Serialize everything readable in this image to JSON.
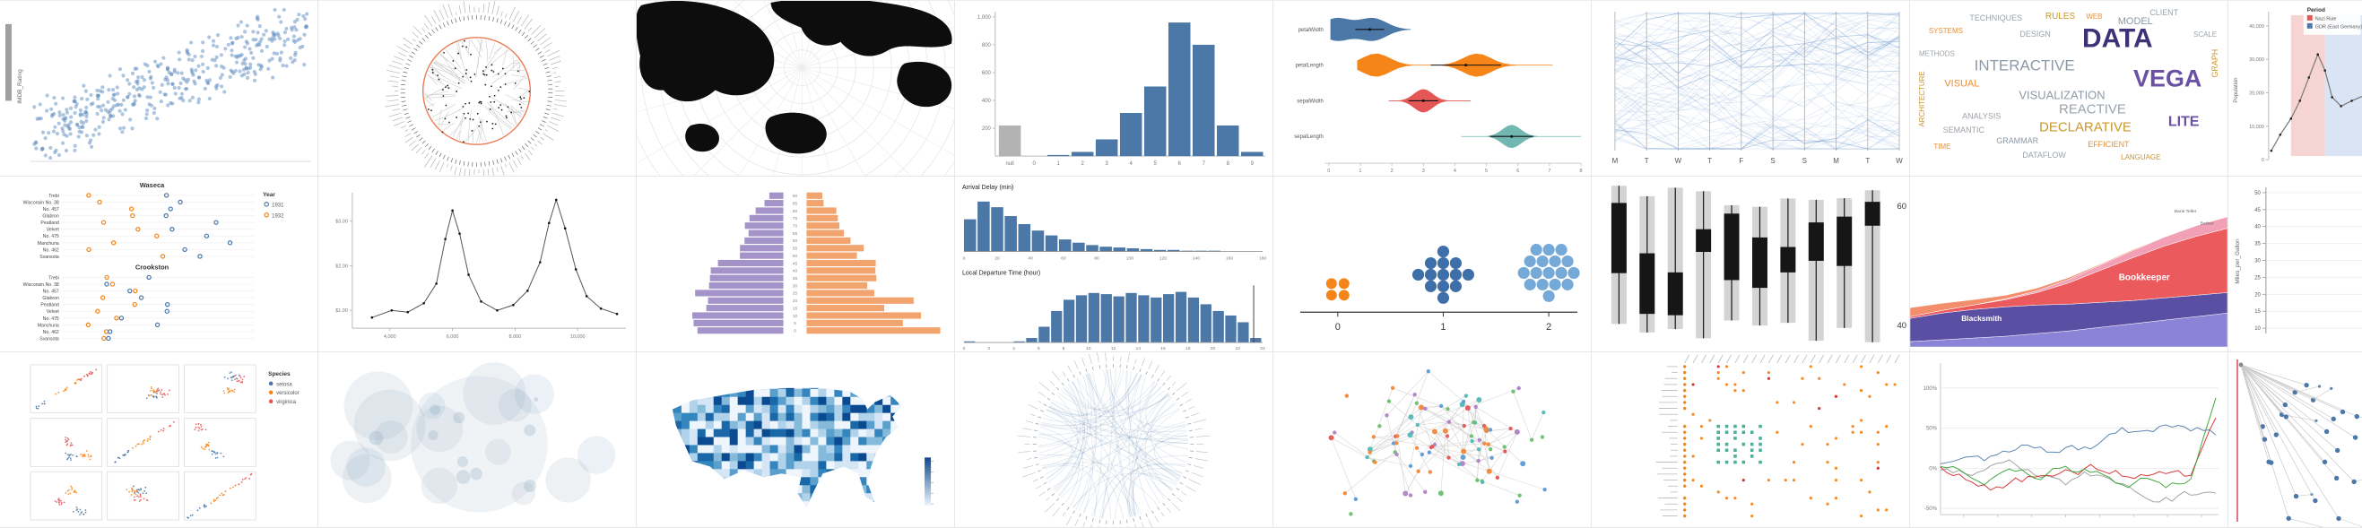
{
  "gallery": {
    "rows": 3,
    "columns": 8
  },
  "chart_data": [
    {
      "id": "scatterplot",
      "type": "scatter",
      "ylabel": "IMDB_Rating",
      "point_color": "#5b8cbf",
      "n_points": 420,
      "trend": "positive"
    },
    {
      "id": "radial-tree",
      "type": "radial_tree",
      "arc_color": "#e8744c",
      "link_color": "#cccccc",
      "node_color": "#222222"
    },
    {
      "id": "world-map-polar",
      "type": "world_map",
      "land_color": "#0d0d0d",
      "graticule_color": "#e3e3e3"
    },
    {
      "id": "histogram-null",
      "type": "histogram",
      "categories": [
        "null",
        "0",
        "1",
        "2",
        "3",
        "4",
        "5",
        "6",
        "7",
        "8",
        "9"
      ],
      "values": [
        220,
        2,
        8,
        30,
        120,
        310,
        500,
        960,
        800,
        220,
        30
      ],
      "y_ticks": [
        "200",
        "400",
        "600",
        "800",
        "1,000"
      ],
      "ylim": [
        0,
        1000
      ],
      "bar_color": "#4c78a8",
      "null_bar_color": "#b3b3b3"
    },
    {
      "id": "violin-plot",
      "type": "violin",
      "categories": [
        "petalWidth",
        "petalLength",
        "sepalWidth",
        "sepalLength"
      ],
      "colors": [
        "#4c78a8",
        "#f58518",
        "#e45756",
        "#72b7b2"
      ],
      "x_ticks": [
        "0",
        "1",
        "2",
        "3",
        "4",
        "5",
        "6",
        "7",
        "8"
      ],
      "xlim": [
        0,
        8
      ],
      "distributions": [
        {
          "range": [
            0.05,
            2.6
          ],
          "peaks": [
            0.25,
            1.4
          ],
          "median": 1.3
        },
        {
          "range": [
            0.9,
            7.1
          ],
          "peaks": [
            1.5,
            4.7
          ],
          "median": 4.35
        },
        {
          "range": [
            1.9,
            4.5
          ],
          "peaks": [
            3.0
          ],
          "median": 3.0
        },
        {
          "range": [
            4.2,
            8.0
          ],
          "peaks": [
            5.8
          ],
          "median": 5.8
        }
      ]
    },
    {
      "id": "parallel-coordinates",
      "type": "parallel",
      "axis_labels": [
        "M",
        "T",
        "W",
        "T",
        "F",
        "S",
        "S",
        "M",
        "T",
        "W"
      ],
      "line_color": "#6f9bd1",
      "n_lines": 75
    },
    {
      "id": "word-cloud",
      "type": "wordcloud",
      "words": [
        {
          "t": "DATA",
          "x": 232,
          "y": 52,
          "s": 30,
          "c": "#3b3277",
          "b": 1
        },
        {
          "t": "VEGA",
          "x": 288,
          "y": 96,
          "s": 27,
          "c": "#6a51a3",
          "b": 1
        },
        {
          "t": "INTERACTIVE",
          "x": 128,
          "y": 78,
          "s": 17,
          "c": "#8d99a6"
        },
        {
          "t": "VISUALIZATION",
          "x": 170,
          "y": 110,
          "s": 13,
          "c": "#8d99a6"
        },
        {
          "t": "REACTIVE",
          "x": 204,
          "y": 126,
          "s": 15,
          "c": "#9aa3ab"
        },
        {
          "t": "DECLARATIVE",
          "x": 196,
          "y": 146,
          "s": 15,
          "c": "#c9972b"
        },
        {
          "t": "LITE",
          "x": 306,
          "y": 140,
          "s": 16,
          "c": "#6a51a3",
          "b": 1
        },
        {
          "t": "VISUAL",
          "x": 58,
          "y": 96,
          "s": 11,
          "c": "#e8903a"
        },
        {
          "t": "MODEL",
          "x": 252,
          "y": 26,
          "s": 11,
          "c": "#8d99a6"
        },
        {
          "t": "SEMANTIC",
          "x": 60,
          "y": 148,
          "s": 9,
          "c": "#9aa3ab"
        },
        {
          "t": "ARCHITECTURE",
          "x": 16,
          "y": 110,
          "s": 8,
          "c": "#c9972b",
          "r": -90
        },
        {
          "t": "TECHNIQUES",
          "x": 96,
          "y": 22,
          "s": 9,
          "c": "#9aa3ab"
        },
        {
          "t": "RULES",
          "x": 168,
          "y": 20,
          "s": 10,
          "c": "#c9972b"
        },
        {
          "t": "CLIENT",
          "x": 284,
          "y": 16,
          "s": 9,
          "c": "#9aa3ab"
        },
        {
          "t": "GRAMMAR",
          "x": 120,
          "y": 160,
          "s": 9,
          "c": "#8d99a6"
        },
        {
          "t": "EFFICIENT",
          "x": 222,
          "y": 164,
          "s": 9,
          "c": "#e8903a"
        },
        {
          "t": "SYSTEMS",
          "x": 40,
          "y": 36,
          "s": 8,
          "c": "#e8903a"
        },
        {
          "t": "DESIGN",
          "x": 140,
          "y": 40,
          "s": 9,
          "c": "#9aa3ab"
        },
        {
          "t": "GRAPH",
          "x": 344,
          "y": 70,
          "s": 9,
          "c": "#c9972b",
          "r": -90
        },
        {
          "t": "WEB",
          "x": 206,
          "y": 20,
          "s": 8,
          "c": "#e8903a"
        },
        {
          "t": "ANALYSIS",
          "x": 80,
          "y": 132,
          "s": 9,
          "c": "#9aa3ab"
        },
        {
          "t": "DATAFLOW",
          "x": 150,
          "y": 176,
          "s": 9,
          "c": "#9aa3ab"
        },
        {
          "t": "LANGUAGE",
          "x": 258,
          "y": 178,
          "s": 8,
          "c": "#c9972b"
        },
        {
          "t": "SCALE",
          "x": 330,
          "y": 40,
          "s": 8,
          "c": "#9aa3ab"
        },
        {
          "t": "TIME",
          "x": 36,
          "y": 166,
          "s": 8,
          "c": "#e8903a"
        },
        {
          "t": "METHODS",
          "x": 30,
          "y": 62,
          "s": 8,
          "c": "#9aa3ab"
        }
      ]
    },
    {
      "id": "falkensee-population",
      "type": "annotated_line",
      "ylabel": "Population",
      "y_ticks": [
        "0",
        "10,000",
        "20,000",
        "30,000",
        "40,000"
      ],
      "legend": {
        "title": "Period",
        "items": [
          {
            "label": "Nazi Rule",
            "color": "#e45756"
          },
          {
            "label": "GDR (East Germany)",
            "color": "#4c78a8"
          }
        ]
      },
      "line_color": "#777777"
    },
    {
      "id": "barley-trellis",
      "type": "barley",
      "panels": [
        "Waseca",
        "Crookston"
      ],
      "varieties": [
        "Trebi",
        "Wisconsin No. 38",
        "No. 457",
        "Glabron",
        "Peatland",
        "Velvet",
        "No. 475",
        "Manchuria",
        "No. 462",
        "Svansota"
      ],
      "legend": {
        "title": "Year",
        "items": [
          {
            "label": "1931",
            "color": "#4c78a8"
          },
          {
            "label": "1932",
            "color": "#f58518"
          }
        ]
      }
    },
    {
      "id": "connected-scatter",
      "type": "connected_scatter",
      "y_ticks": [
        "$1.00",
        "$2.00",
        "$3.00"
      ],
      "x_ticks": [
        "4,000",
        "6,000",
        "8,000",
        "10,000"
      ],
      "line_color": "#555555"
    },
    {
      "id": "population-pyramid",
      "type": "pyramid",
      "age_ticks": [
        "0",
        "5",
        "10",
        "15",
        "20",
        "25",
        "30",
        "35",
        "40",
        "45",
        "50",
        "55",
        "60",
        "65",
        "70",
        "75",
        "80",
        "85",
        "90"
      ],
      "left_color": "#a393c9",
      "right_color": "#f2a46f"
    },
    {
      "id": "crossfilter-flights",
      "type": "crossfilter",
      "panels": [
        {
          "title": "Arrival Delay (min)",
          "x_ticks": [
            "0",
            "20",
            "40",
            "60",
            "80",
            "100",
            "120",
            "140",
            "160",
            "180"
          ],
          "values": [
            40,
            62,
            55,
            44,
            34,
            26,
            20,
            15,
            11,
            8,
            6,
            5,
            4,
            3,
            2,
            2,
            1,
            1,
            1,
            0,
            0,
            0
          ]
        },
        {
          "title": "Local Departure Time (hour)",
          "x_ticks": [
            "0",
            "2",
            "4",
            "6",
            "8",
            "10",
            "12",
            "14",
            "16",
            "18",
            "20",
            "22",
            "24"
          ],
          "values": [
            1,
            0,
            0,
            0,
            1,
            4,
            14,
            28,
            38,
            42,
            44,
            43,
            41,
            44,
            42,
            40,
            43,
            45,
            40,
            34,
            28,
            24,
            18,
            4
          ]
        }
      ],
      "bar_color": "#4c78a8"
    },
    {
      "id": "dot-plot-groups",
      "type": "dot_groups",
      "x_ticks": [
        "0",
        "1",
        "2"
      ],
      "groups": [
        {
          "count": 4,
          "color": "#f58518"
        },
        {
          "count": 13,
          "color": "#3f6fa8"
        },
        {
          "count": 17,
          "color": "#74a9d8"
        }
      ]
    },
    {
      "id": "ranged-bars",
      "type": "candles",
      "y_ticks": [
        "60",
        "40"
      ],
      "bg_color": "#d4d4d4",
      "fg_color": "#161616",
      "n": 10
    },
    {
      "id": "job-voyager",
      "type": "stream",
      "labels": [
        {
          "text": "Blacksmith",
          "x": 80,
          "y": 162,
          "size": 8.5,
          "color": "#ffffff"
        },
        {
          "text": "Bookkeeper",
          "x": 262,
          "y": 116,
          "size": 10,
          "color": "#ffffff"
        },
        {
          "text": "Bank Teller",
          "x": 308,
          "y": 40,
          "size": 5,
          "color": "#666666"
        },
        {
          "text": "Barber",
          "x": 332,
          "y": 54,
          "size": 5,
          "color": "#666666"
        }
      ],
      "colors": [
        "#8b84d6",
        "#5a4fa2",
        "#eb5b5e",
        "#f2a0b5",
        "#f28e6b"
      ],
      "layers": [
        [
          6,
          8,
          10,
          12,
          15,
          18,
          22,
          26,
          30,
          34,
          38
        ],
        [
          26,
          30,
          32,
          33,
          32,
          30,
          28,
          26,
          25,
          24,
          23
        ],
        [
          2,
          3,
          5,
          8,
          14,
          24,
          36,
          48,
          58,
          66,
          72
        ],
        [
          0,
          0,
          0,
          1,
          2,
          4,
          6,
          8,
          10,
          12,
          13
        ],
        [
          10,
          8,
          6,
          4,
          3,
          2,
          1,
          1,
          0,
          0,
          0
        ]
      ]
    },
    {
      "id": "mpg-axis",
      "type": "axis_only",
      "ylabel": "Miles_per_Gallon",
      "y_ticks": [
        "50",
        "45",
        "40",
        "35",
        "30",
        "25",
        "20",
        "15",
        "10"
      ]
    },
    {
      "id": "splom-iris",
      "type": "splom",
      "legend": {
        "title": "Species",
        "items": [
          {
            "label": "setosa",
            "color": "#4c78a8"
          },
          {
            "label": "versicolor",
            "color": "#f58518"
          },
          {
            "label": "virginica",
            "color": "#e45756"
          }
        ]
      }
    },
    {
      "id": "packed-bubbles",
      "type": "bubbles",
      "bubble_color": "#8fa8bc"
    },
    {
      "id": "us-choropleth",
      "type": "us_map",
      "palette": [
        "#eef5fc",
        "#d4e6f5",
        "#b0d2ea",
        "#85badb",
        "#5aa0cd",
        "#3585bf",
        "#1a68a8",
        "#0a4a90"
      ]
    },
    {
      "id": "edge-bundling",
      "type": "bundle",
      "edge_color": "#4c78a8"
    },
    {
      "id": "force-graph",
      "type": "force",
      "node_colors": [
        "#6bbf6e",
        "#f0883a",
        "#5b9bd5",
        "#e4565a",
        "#53b8b8",
        "#b07fc7"
      ],
      "edge_color": "#cccccc"
    },
    {
      "id": "dot-matrix",
      "type": "matrix",
      "dot_color": "#f58518",
      "cluster_color": "#4daf9a"
    },
    {
      "id": "multi-series-returns",
      "type": "multiline",
      "y_ticks": [
        "100%",
        "50%",
        "0%",
        "-50%"
      ],
      "series_colors": [
        "#999999",
        "#4c78a8",
        "#d62728",
        "#2ca02c"
      ]
    },
    {
      "id": "tree-fan",
      "type": "fan",
      "line_color": "#c9c9c9",
      "node_color": "#4c78a8",
      "accent_line_color": "#d94f6b"
    }
  ]
}
